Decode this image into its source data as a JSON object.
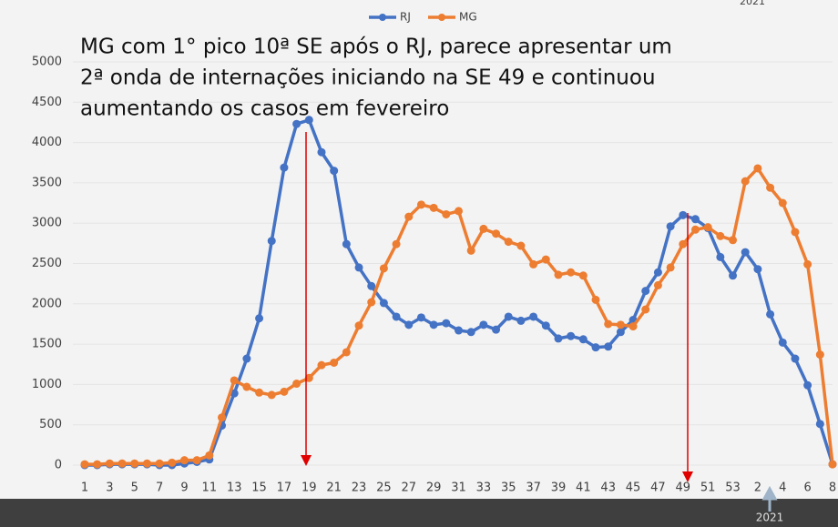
{
  "chart_data": {
    "type": "line",
    "annotation_lines": [
      "MG com 1° pico 10ª SE após o RJ, parece apresentar um",
      "2ª onda de internações iniciando na SE 49 e continuou",
      "aumentando os casos em fevereiro"
    ],
    "year_labels": [
      "2021",
      "2021"
    ],
    "categories": [
      1,
      null,
      3,
      null,
      5,
      null,
      7,
      null,
      9,
      null,
      11,
      null,
      13,
      null,
      15,
      null,
      17,
      null,
      19,
      null,
      21,
      null,
      23,
      null,
      25,
      null,
      27,
      null,
      29,
      null,
      31,
      null,
      33,
      null,
      35,
      null,
      37,
      null,
      39,
      null,
      41,
      null,
      43,
      null,
      45,
      null,
      47,
      null,
      49,
      null,
      51,
      null,
      53,
      null,
      2,
      null,
      4,
      null,
      6,
      null,
      8
    ],
    "series": [
      {
        "name": "RJ",
        "color": "#4472c4",
        "values": [
          0,
          0,
          10,
          10,
          10,
          10,
          0,
          0,
          20,
          40,
          70,
          490,
          890,
          1320,
          1820,
          2780,
          3690,
          4230,
          4280,
          3880,
          3650,
          2740,
          2450,
          2220,
          2010,
          1840,
          1740,
          1830,
          1740,
          1760,
          1670,
          1650,
          1740,
          1680,
          1840,
          1790,
          1840,
          1730,
          1570,
          1600,
          1560,
          1460,
          1470,
          1650,
          1800,
          2160,
          2390,
          2960,
          3100,
          3050,
          2940,
          2580,
          2350,
          2640,
          2430,
          1870,
          1520,
          1320,
          990,
          510,
          10
        ]
      },
      {
        "name": "MG",
        "color": "#ed7d31",
        "values": [
          10,
          10,
          20,
          20,
          20,
          20,
          20,
          30,
          60,
          60,
          120,
          590,
          1050,
          970,
          900,
          870,
          910,
          1010,
          1080,
          1240,
          1270,
          1400,
          1730,
          2020,
          2440,
          2740,
          3080,
          3230,
          3190,
          3110,
          3150,
          2660,
          2930,
          2870,
          2770,
          2720,
          2490,
          2550,
          2360,
          2390,
          2350,
          2050,
          1750,
          1740,
          1720,
          1930,
          2230,
          2450,
          2740,
          2920,
          2950,
          2840,
          2790,
          3520,
          3680,
          3440,
          3250,
          2890,
          2490,
          1370,
          10
        ]
      }
    ],
    "ylim": [
      0,
      5000
    ],
    "yticks": [
      0,
      500,
      1000,
      1500,
      2000,
      2500,
      3000,
      3500,
      4000,
      4500,
      5000
    ],
    "grid": true,
    "legend": "top"
  }
}
